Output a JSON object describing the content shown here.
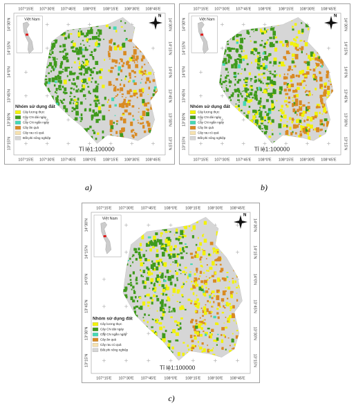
{
  "figure": {
    "longitude_labels": [
      "107°15'E",
      "107°30'E",
      "107°45'E",
      "108°0'E",
      "108°15'E",
      "108°30'E",
      "108°45'E"
    ],
    "latitude_labels": [
      "14°30'N",
      "14°15'N",
      "14°0'N",
      "13°45'N",
      "13°30'N",
      "13°15'N"
    ],
    "inset_label": "Việt Nam",
    "north_label": "N",
    "legend": {
      "title": "Nhóm sử dụng đất",
      "items": [
        {
          "label": "Cây lương thực",
          "color": "#f2f20a"
        },
        {
          "label": "Cây CN dài ngày",
          "color": "#3f9a1c"
        },
        {
          "label": "Cây CN ngắn ngày",
          "color": "#45d8b4"
        },
        {
          "label": "Cây ăn quả",
          "color": "#d98a22"
        },
        {
          "label": "Cây rau củ quả",
          "color": "#f6e2b0"
        },
        {
          "label": "Đất phi nông nghiệp",
          "color": "#d6d6d6"
        }
      ]
    },
    "scale": "Tỉ lệ1:100000",
    "panels": [
      {
        "caption": "a)"
      },
      {
        "caption": "b)"
      },
      {
        "caption": "c)"
      }
    ]
  }
}
